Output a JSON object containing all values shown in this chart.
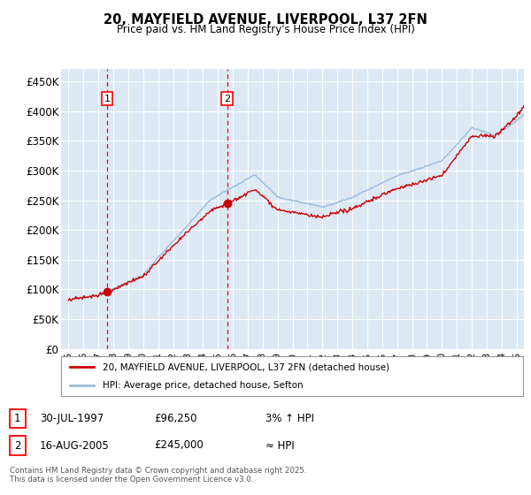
{
  "title_line1": "20, MAYFIELD AVENUE, LIVERPOOL, L37 2FN",
  "title_line2": "Price paid vs. HM Land Registry's House Price Index (HPI)",
  "ylabel_ticks": [
    "£0",
    "£50K",
    "£100K",
    "£150K",
    "£200K",
    "£250K",
    "£300K",
    "£350K",
    "£400K",
    "£450K"
  ],
  "ylabel_values": [
    0,
    50000,
    100000,
    150000,
    200000,
    250000,
    300000,
    350000,
    400000,
    450000
  ],
  "ylim": [
    0,
    470000
  ],
  "xlim_start": 1994.5,
  "xlim_end": 2025.5,
  "background_color": "#dce9f5",
  "grid_color": "#ffffff",
  "sale1_x": 1997.58,
  "sale1_y": 96250,
  "sale2_x": 2005.62,
  "sale2_y": 245000,
  "line_color": "#cc0000",
  "hpi_color": "#99bbdd",
  "legend_line1": "20, MAYFIELD AVENUE, LIVERPOOL, L37 2FN (detached house)",
  "legend_line2": "HPI: Average price, detached house, Sefton",
  "sale1_date": "30-JUL-1997",
  "sale1_price": "£96,250",
  "sale1_note": "3% ↑ HPI",
  "sale2_date": "16-AUG-2005",
  "sale2_price": "£245,000",
  "sale2_note": "≈ HPI",
  "footer": "Contains HM Land Registry data © Crown copyright and database right 2025.\nThis data is licensed under the Open Government Licence v3.0.",
  "x_tick_labels": [
    "95",
    "96",
    "97",
    "98",
    "99",
    "00",
    "01",
    "02",
    "03",
    "04",
    "05",
    "06",
    "07",
    "08",
    "09",
    "10",
    "11",
    "12",
    "13",
    "14",
    "15",
    "16",
    "17",
    "18",
    "19",
    "20",
    "21",
    "22",
    "23",
    "24",
    "25"
  ],
  "x_tick_years": [
    1995,
    1996,
    1997,
    1998,
    1999,
    2000,
    2001,
    2002,
    2003,
    2004,
    2005,
    2006,
    2007,
    2008,
    2009,
    2010,
    2011,
    2012,
    2013,
    2014,
    2015,
    2016,
    2017,
    2018,
    2019,
    2020,
    2021,
    2022,
    2023,
    2024,
    2025
  ]
}
